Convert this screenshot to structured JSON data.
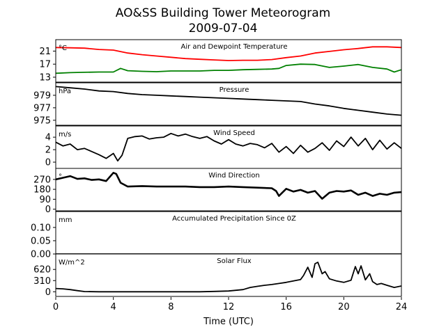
{
  "chart_data": {
    "type": "line",
    "title": "AO&SS Building Tower Meteorogram",
    "subtitle": "2009-07-04",
    "xlabel": "Time (UTC)",
    "xlim": [
      0,
      24
    ],
    "xticks": [
      0,
      4,
      8,
      12,
      16,
      20,
      24
    ],
    "panels": [
      {
        "title": "Air and Dewpoint Temperature",
        "unit": "°C",
        "ylim": [
          11.5,
          24.5
        ],
        "yticks": [
          13,
          17,
          21
        ],
        "series": [
          {
            "color": "#ff0000",
            "x": [
              0,
              1,
              2,
              3,
              4,
              5,
              6,
              7,
              8,
              9,
              10,
              11,
              12,
              13,
              14,
              15,
              16,
              17,
              18,
              19,
              20,
              21,
              22,
              23,
              24
            ],
            "y": [
              22.1,
              22.0,
              21.9,
              21.5,
              21.3,
              20.4,
              19.9,
              19.5,
              19.1,
              18.7,
              18.5,
              18.3,
              18.1,
              18.2,
              18.2,
              18.4,
              19.0,
              19.5,
              20.4,
              20.9,
              21.4,
              21.8,
              22.3,
              22.3,
              22.1
            ]
          },
          {
            "color": "#008000",
            "x": [
              0,
              1,
              2,
              3,
              4,
              4.5,
              5,
              6,
              7,
              8,
              9,
              10,
              11,
              12,
              13,
              14,
              15,
              15.5,
              16,
              17,
              18,
              19,
              20,
              21,
              22,
              23,
              23.5,
              24
            ],
            "y": [
              14.2,
              14.4,
              14.5,
              14.6,
              14.6,
              15.7,
              15.0,
              14.8,
              14.7,
              14.9,
              14.9,
              14.9,
              15.1,
              15.1,
              15.3,
              15.4,
              15.5,
              15.7,
              16.6,
              17.0,
              16.9,
              16.0,
              16.4,
              16.9,
              16.0,
              15.5,
              14.6,
              15.3
            ]
          }
        ]
      },
      {
        "title": "Pressure",
        "unit": "hPa",
        "ylim": [
          974.2,
          981.0
        ],
        "yticks": [
          975,
          977,
          979
        ],
        "series": [
          {
            "color": "#000000",
            "x": [
              0,
              1,
              2,
              3,
              4,
              5,
              6,
              7,
              8,
              9,
              10,
              11,
              12,
              13,
              14,
              15,
              16,
              17,
              18,
              19,
              20,
              21,
              22,
              23,
              24
            ],
            "y": [
              980.4,
              980.2,
              980.0,
              979.7,
              979.6,
              979.3,
              979.1,
              979.0,
              978.9,
              978.8,
              978.7,
              978.6,
              978.5,
              978.4,
              978.3,
              978.2,
              978.1,
              978.0,
              977.6,
              977.3,
              976.9,
              976.6,
              976.3,
              976.0,
              975.8
            ]
          }
        ]
      },
      {
        "title": "Wind Speed",
        "unit": "m/s",
        "ylim": [
          -1.0,
          5.8
        ],
        "yticks": [
          0,
          2,
          4
        ],
        "series": [
          {
            "color": "#000000",
            "x": [
              0,
              0.5,
              1,
              1.5,
              2,
              2.5,
              3,
              3.5,
              4,
              4.3,
              4.6,
              5,
              5.5,
              6,
              6.5,
              7,
              7.5,
              8,
              8.5,
              9,
              9.5,
              10,
              10.5,
              11,
              11.5,
              12,
              12.5,
              13,
              13.5,
              14,
              14.5,
              15,
              15.5,
              16,
              16.5,
              17,
              17.5,
              18,
              18.5,
              19,
              19.5,
              20,
              20.5,
              21,
              21.5,
              22,
              22.5,
              23,
              23.5,
              24
            ],
            "y": [
              3.2,
              2.6,
              2.9,
              2.0,
              2.2,
              1.7,
              1.2,
              0.6,
              1.4,
              0.2,
              1.1,
              3.8,
              4.1,
              4.2,
              3.7,
              3.9,
              4.0,
              4.6,
              4.2,
              4.5,
              4.1,
              3.8,
              4.1,
              3.4,
              2.9,
              3.6,
              2.9,
              2.6,
              3.0,
              2.8,
              2.3,
              3.0,
              1.6,
              2.5,
              1.4,
              2.7,
              1.6,
              2.2,
              3.1,
              1.9,
              3.4,
              2.5,
              4.0,
              2.6,
              3.8,
              2.0,
              3.5,
              2.1,
              3.1,
              2.2
            ]
          }
        ]
      },
      {
        "title": "Wind Direction",
        "unit": "°",
        "ylim": [
          -15,
          370
        ],
        "yticks": [
          0,
          90,
          180,
          270
        ],
        "series": [
          {
            "color": "#000000",
            "x": [
              0,
              0.5,
              1,
              1.5,
              2,
              2.5,
              3,
              3.5,
              4,
              4.2,
              4.5,
              5,
              6,
              7,
              8,
              9,
              10,
              11,
              12,
              13,
              14,
              15,
              15.3,
              15.5,
              16,
              16.5,
              17,
              17.5,
              18,
              18.5,
              19,
              19.5,
              20,
              20.5,
              21,
              21.5,
              22,
              22.5,
              23,
              23.5,
              24
            ],
            "y": [
              270,
              285,
              300,
              275,
              280,
              265,
              270,
              255,
              330,
              320,
              240,
              205,
              210,
              205,
              205,
              205,
              200,
              200,
              205,
              200,
              195,
              190,
              165,
              120,
              185,
              160,
              175,
              150,
              165,
              95,
              150,
              165,
              160,
              170,
              130,
              150,
              120,
              140,
              130,
              150,
              155
            ]
          }
        ]
      },
      {
        "title": "Accumulated Precipitation Since 0Z",
        "unit": "mm",
        "ylim": [
          0,
          0.16
        ],
        "yticks": [
          0.0,
          0.05,
          0.1
        ],
        "ytick_labels": [
          "0.00",
          "0.05",
          "0.10"
        ],
        "series": [
          {
            "color": "#000000",
            "x": [
              0,
              24
            ],
            "y": [
              0,
              0
            ]
          }
        ]
      },
      {
        "title": "Solar Flux",
        "unit": "W/m^2",
        "ylim": [
          -130,
          1050
        ],
        "yticks": [
          0,
          310,
          620
        ],
        "series": [
          {
            "color": "#000000",
            "x": [
              0,
              0.5,
              1,
              1.5,
              2,
              3,
              4,
              5,
              6,
              7,
              8,
              9,
              10,
              11,
              12,
              13,
              13.5,
              14,
              14.5,
              15,
              15.5,
              16,
              16.5,
              17,
              17.2,
              17.5,
              17.8,
              18,
              18.2,
              18.5,
              18.7,
              19,
              19.5,
              20,
              20.5,
              20.8,
              21,
              21.2,
              21.5,
              21.8,
              22,
              22.3,
              22.6,
              23,
              23.5,
              24
            ],
            "y": [
              90,
              80,
              60,
              30,
              5,
              0,
              0,
              0,
              0,
              0,
              0,
              0,
              0,
              10,
              20,
              60,
              120,
              150,
              180,
              200,
              230,
              260,
              300,
              340,
              450,
              680,
              400,
              780,
              820,
              500,
              560,
              360,
              300,
              260,
              320,
              700,
              500,
              720,
              330,
              500,
              280,
              200,
              230,
              180,
              120,
              160
            ]
          }
        ]
      }
    ]
  }
}
